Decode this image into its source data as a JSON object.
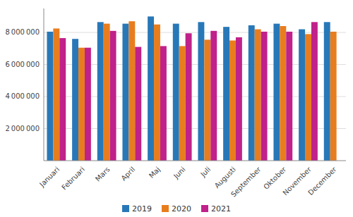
{
  "chart_data": {
    "type": "bar",
    "categories": [
      "Januari",
      "Februari",
      "Mars",
      "April",
      "Maj",
      "Juni",
      "Juli",
      "Augusti",
      "September",
      "Oktober",
      "November",
      "December"
    ],
    "series": [
      {
        "name": "2019",
        "color": "#2878b8",
        "values": [
          8050000,
          7600000,
          8650000,
          8550000,
          9000000,
          8550000,
          8650000,
          8350000,
          8450000,
          8550000,
          8200000,
          8650000
        ]
      },
      {
        "name": "2020",
        "color": "#e87d1e",
        "values": [
          8250000,
          7050000,
          8550000,
          8700000,
          8500000,
          7150000,
          7550000,
          7500000,
          8200000,
          8400000,
          7900000,
          8050000
        ]
      },
      {
        "name": "2021",
        "color": "#c0218a",
        "values": [
          7650000,
          7050000,
          8100000,
          7100000,
          7150000,
          7950000,
          8100000,
          7700000,
          8050000,
          8050000,
          8650000,
          0
        ]
      }
    ],
    "ylim": [
      0,
      9500000
    ],
    "yticks": [
      {
        "value": 2000000,
        "label": "2 000 000"
      },
      {
        "value": 4000000,
        "label": "4 000 000"
      },
      {
        "value": 6000000,
        "label": "6 000 000"
      },
      {
        "value": 8000000,
        "label": "8 000 000"
      }
    ],
    "grid": true,
    "legend": "bottom"
  }
}
